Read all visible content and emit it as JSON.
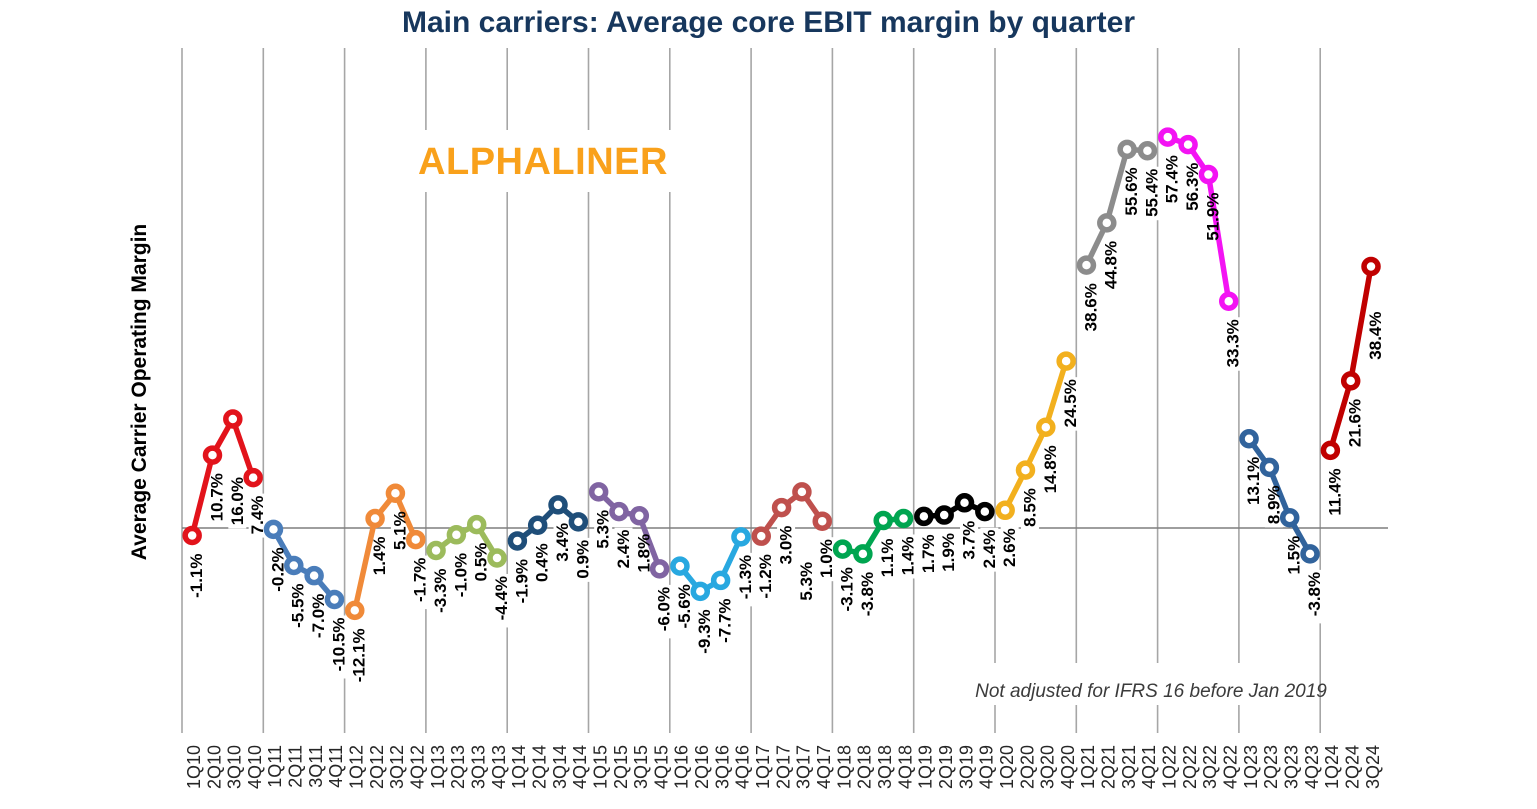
{
  "title": {
    "text": "Main carriers: Average core EBIT margin by quarter",
    "color": "#17375D"
  },
  "watermark": {
    "text": "ALPHALINER",
    "color": "#F9A11B"
  },
  "note": {
    "text": "Not adjusted for IFRS 16 before Jan 2019",
    "color": "#3B3B3B"
  },
  "chart_data": {
    "type": "line",
    "title": "Main carriers: Average core EBIT margin by quarter",
    "xlabel": "",
    "ylabel": "Average Carrier Operating Margin",
    "ylim": [
      -30,
      70
    ],
    "grid": "vertical gray line at each year boundary plus horizontal zero line",
    "legend": "none",
    "marker": "open-circle",
    "data_label_format": "value to one decimal followed by %, rotated 90 degrees below each point",
    "grid_color": "#A6A6A6",
    "zero_line_color": "#7F7F7F",
    "tick_label_color": "#262626",
    "data_label_color": "#000000",
    "series": [
      {
        "name": "2010",
        "color": "#E2131B",
        "quarters": [
          "1Q10",
          "2Q10",
          "3Q10",
          "4Q10"
        ],
        "values": [
          -1.1,
          10.7,
          16.0,
          7.4
        ]
      },
      {
        "name": "2011",
        "color": "#4A7DBA",
        "quarters": [
          "1Q11",
          "2Q11",
          "3Q11",
          "4Q11"
        ],
        "values": [
          -0.2,
          -5.5,
          -7.0,
          -10.5
        ]
      },
      {
        "name": "2012",
        "color": "#F08A39",
        "quarters": [
          "1Q12",
          "2Q12",
          "3Q12",
          "4Q12"
        ],
        "values": [
          -12.1,
          1.4,
          5.1,
          -1.7
        ]
      },
      {
        "name": "2013",
        "color": "#9CBB5C",
        "quarters": [
          "1Q13",
          "2Q13",
          "3Q13",
          "4Q13"
        ],
        "values": [
          -3.3,
          -1.0,
          0.5,
          -4.4
        ]
      },
      {
        "name": "2014",
        "color": "#1F4E79",
        "quarters": [
          "1Q14",
          "2Q14",
          "3Q14",
          "4Q14"
        ],
        "values": [
          -1.9,
          0.4,
          3.4,
          0.9
        ]
      },
      {
        "name": "2015",
        "color": "#8064A2",
        "quarters": [
          "1Q15",
          "2Q15",
          "3Q15",
          "4Q15"
        ],
        "values": [
          5.3,
          2.4,
          1.8,
          -6.0
        ]
      },
      {
        "name": "2016",
        "color": "#28A8E0",
        "quarters": [
          "1Q16",
          "2Q16",
          "3Q16",
          "4Q16"
        ],
        "values": [
          -5.6,
          -9.3,
          -7.7,
          -1.3
        ]
      },
      {
        "name": "2017",
        "color": "#BF504D",
        "quarters": [
          "1Q17",
          "2Q17",
          "3Q17",
          "4Q17"
        ],
        "values": [
          -1.2,
          3.0,
          5.3,
          1.0
        ]
      },
      {
        "name": "2018",
        "color": "#00A550",
        "quarters": [
          "1Q18",
          "2Q18",
          "3Q18",
          "4Q18"
        ],
        "values": [
          -3.1,
          -3.8,
          1.1,
          1.4
        ]
      },
      {
        "name": "2019",
        "color": "#000000",
        "quarters": [
          "1Q19",
          "2Q19",
          "3Q19",
          "4Q19"
        ],
        "values": [
          1.7,
          1.9,
          3.7,
          2.4
        ]
      },
      {
        "name": "2020",
        "color": "#F2B01E",
        "quarters": [
          "1Q20",
          "2Q20",
          "3Q20",
          "4Q20"
        ],
        "values": [
          2.6,
          8.5,
          14.8,
          24.5
        ]
      },
      {
        "name": "2021",
        "color": "#8C8C8C",
        "quarters": [
          "1Q21",
          "2Q21",
          "3Q21",
          "4Q21"
        ],
        "values": [
          38.6,
          44.8,
          55.6,
          55.4
        ]
      },
      {
        "name": "2022",
        "color": "#F313F3",
        "quarters": [
          "1Q22",
          "2Q22",
          "3Q22",
          "4Q22"
        ],
        "values": [
          57.4,
          56.3,
          51.9,
          33.3
        ]
      },
      {
        "name": "2023",
        "color": "#31639C",
        "quarters": [
          "1Q23",
          "2Q23",
          "3Q23",
          "4Q23"
        ],
        "values": [
          13.1,
          8.9,
          1.5,
          -3.8
        ]
      },
      {
        "name": "2024",
        "color": "#C00000",
        "quarters": [
          "1Q24",
          "2Q24",
          "3Q24"
        ],
        "values": [
          11.4,
          21.6,
          38.4
        ]
      }
    ]
  }
}
